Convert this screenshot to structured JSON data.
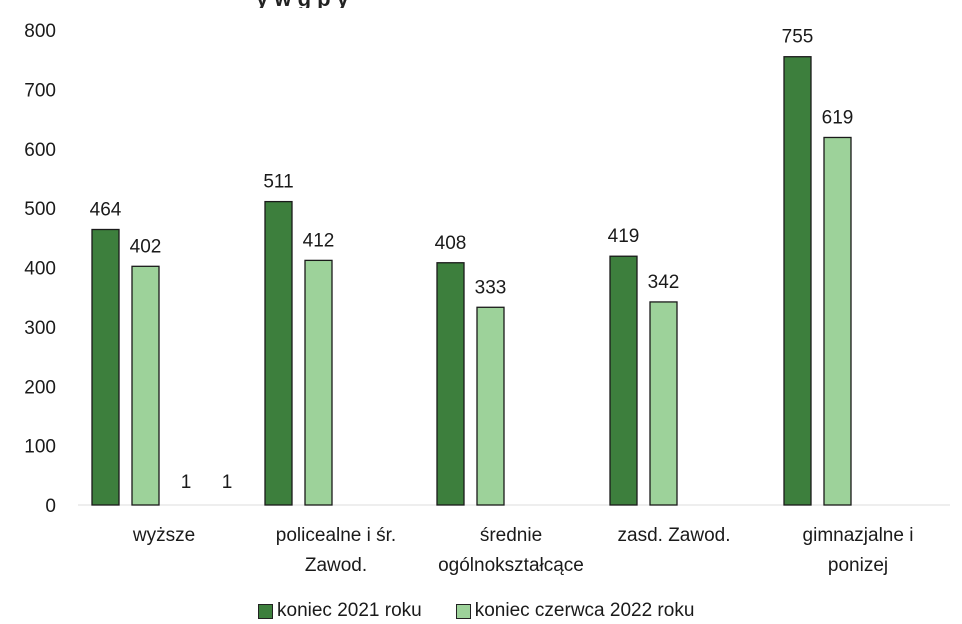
{
  "chart_data": {
    "type": "bar",
    "title": "",
    "title_fragment": "y  w  g  p  y",
    "categories": [
      "wyższe",
      "policealne i śr. Zawod.",
      "średnie ogólnokształcące",
      "zasd. Zawod.",
      "gimnazjalne i ponizej"
    ],
    "category_lines": [
      [
        "wyższe"
      ],
      [
        "policealne i śr.",
        "Zawod."
      ],
      [
        "średnie",
        "ogólnokształcące"
      ],
      [
        "zasd. Zawod."
      ],
      [
        "gimnazjalne i",
        "ponizej"
      ]
    ],
    "series": [
      {
        "name": "koniec 2021 roku",
        "values": [
          464,
          511,
          408,
          419,
          755
        ],
        "color": "#3d7f3d"
      },
      {
        "name": "koniec czerwca 2022 roku",
        "values": [
          402,
          412,
          333,
          342,
          619
        ],
        "color": "#9dd29a"
      }
    ],
    "extra_labels": [
      "1",
      "1"
    ],
    "ylim": [
      0,
      800
    ],
    "yticks": [
      0,
      100,
      200,
      300,
      400,
      500,
      600,
      700,
      800
    ],
    "grid": false,
    "legend": "bottom",
    "xlabel": "",
    "ylabel": ""
  }
}
